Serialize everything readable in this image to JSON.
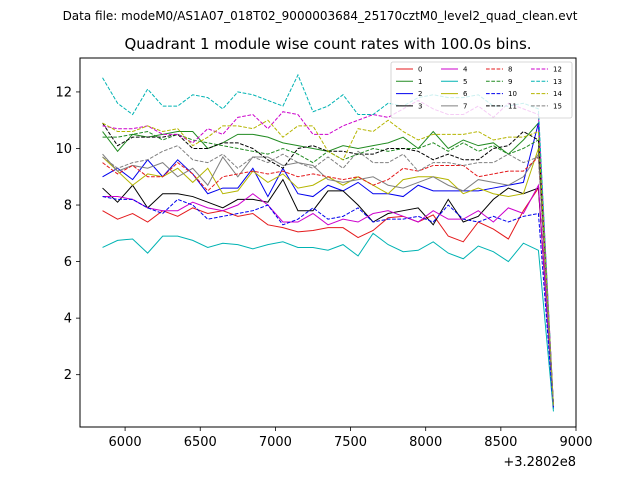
{
  "suptitle": "Data file: modeM0/AS1A07_018T02_9000003684_25170cztM0_level2_quad_clean.evt",
  "chart_data": {
    "type": "line",
    "title": "Quadrant 1 module wise count rates with 100.0s bins.",
    "x_offset_label": "+3.2802e8",
    "xlim": [
      5700,
      9000
    ],
    "ylim": [
      0.15,
      13.2
    ],
    "xticks": [
      6000,
      6500,
      7000,
      7500,
      8000,
      8500,
      9000
    ],
    "xtick_labels": [
      "6000",
      "6500",
      "7000",
      "7500",
      "8000",
      "8500",
      "9000"
    ],
    "yticks": [
      2,
      4,
      6,
      8,
      10,
      12
    ],
    "ytick_labels": [
      "2",
      "4",
      "6",
      "8",
      "10",
      "12"
    ],
    "legend_position": "upper-right",
    "legend_columns": 4,
    "x": [
      5850,
      5950,
      6050,
      6150,
      6250,
      6350,
      6450,
      6550,
      6650,
      6750,
      6850,
      6950,
      7050,
      7150,
      7250,
      7350,
      7450,
      7550,
      7650,
      7750,
      7850,
      7950,
      8050,
      8150,
      8250,
      8350,
      8450,
      8550,
      8650,
      8750,
      8850
    ],
    "series": [
      {
        "name": "0",
        "color": "#e41a1c",
        "dash": false,
        "values": [
          7.8,
          7.5,
          7.7,
          7.4,
          7.8,
          7.6,
          7.9,
          7.7,
          7.8,
          7.6,
          7.7,
          7.3,
          7.2,
          7.05,
          7.1,
          7.2,
          7.2,
          6.85,
          7.1,
          7.55,
          7.6,
          7.4,
          7.65,
          6.9,
          6.7,
          7.4,
          7.15,
          6.8,
          7.8,
          8.6,
          0.9
        ]
      },
      {
        "name": "1",
        "color": "#228B22",
        "dash": false,
        "values": [
          10.6,
          9.9,
          10.5,
          10.4,
          10.5,
          10.6,
          10.6,
          10.0,
          10.2,
          10.5,
          10.5,
          10.4,
          10.2,
          10.1,
          10.0,
          9.9,
          10.1,
          10.0,
          10.1,
          10.2,
          10.4,
          10.0,
          10.6,
          10.0,
          10.3,
          10.1,
          10.2,
          9.8,
          10.3,
          10.9,
          0.9
        ]
      },
      {
        "name": "2",
        "color": "#0000ee",
        "dash": false,
        "values": [
          9.0,
          9.3,
          8.9,
          9.6,
          9.0,
          9.6,
          9.1,
          8.4,
          8.6,
          8.6,
          9.3,
          8.3,
          9.3,
          8.4,
          8.3,
          8.7,
          8.5,
          8.8,
          8.4,
          8.4,
          8.3,
          8.7,
          8.5,
          8.5,
          8.5,
          8.5,
          8.6,
          8.7,
          8.8,
          10.9,
          0.8
        ]
      },
      {
        "name": "3",
        "color": "#000000",
        "dash": false,
        "values": [
          8.6,
          8.1,
          8.7,
          7.9,
          8.4,
          8.4,
          8.3,
          8.1,
          7.9,
          8.2,
          8.2,
          8.1,
          8.9,
          7.8,
          7.8,
          8.5,
          8.5,
          8.0,
          7.4,
          7.7,
          7.8,
          7.9,
          7.3,
          8.2,
          7.4,
          7.6,
          8.2,
          8.6,
          8.4,
          8.6,
          0.9
        ]
      },
      {
        "name": "4",
        "color": "#cc00cc",
        "dash": false,
        "values": [
          8.3,
          8.3,
          8.2,
          7.9,
          7.8,
          7.8,
          8.1,
          7.9,
          7.8,
          8.0,
          8.4,
          8.0,
          7.4,
          7.4,
          7.7,
          7.3,
          7.5,
          7.4,
          7.7,
          7.8,
          7.6,
          7.4,
          7.8,
          7.5,
          7.5,
          7.8,
          7.4,
          7.9,
          7.7,
          8.7,
          0.8
        ]
      },
      {
        "name": "5",
        "color": "#00b3b3",
        "dash": false,
        "values": [
          6.5,
          6.75,
          6.8,
          6.3,
          6.9,
          6.9,
          6.75,
          6.5,
          6.65,
          6.6,
          6.45,
          6.6,
          6.7,
          6.5,
          6.5,
          6.4,
          6.6,
          6.2,
          7.0,
          6.6,
          6.35,
          6.4,
          6.7,
          6.3,
          6.1,
          6.55,
          6.35,
          6.0,
          6.65,
          6.4,
          0.7
        ]
      },
      {
        "name": "6",
        "color": "#b5b500",
        "dash": false,
        "values": [
          9.7,
          9.2,
          8.7,
          9.1,
          9.0,
          9.3,
          8.8,
          9.3,
          8.4,
          8.5,
          9.2,
          8.8,
          9.1,
          8.6,
          8.7,
          9.0,
          8.7,
          9.0,
          8.7,
          8.4,
          8.9,
          9.0,
          9.0,
          8.9,
          8.4,
          8.6,
          8.4,
          8.3,
          8.4,
          10.0,
          0.9
        ]
      },
      {
        "name": "7",
        "color": "#808080",
        "dash": false,
        "values": [
          9.8,
          9.2,
          9.4,
          9.3,
          9.5,
          9.0,
          9.3,
          8.7,
          9.7,
          9.0,
          9.7,
          9.7,
          9.4,
          9.5,
          9.4,
          8.9,
          8.8,
          8.9,
          9.0,
          8.7,
          8.6,
          8.8,
          9.0,
          8.7,
          8.5,
          8.9,
          8.8,
          8.7,
          9.0,
          9.8,
          0.9
        ]
      },
      {
        "name": "8",
        "color": "#e41a1c",
        "dash": true,
        "values": [
          9.5,
          9.1,
          9.4,
          9.0,
          9.0,
          9.5,
          9.1,
          8.5,
          9.0,
          9.1,
          9.2,
          9.1,
          9.2,
          9.0,
          9.1,
          9.0,
          8.9,
          9.0,
          8.7,
          8.9,
          9.3,
          9.2,
          9.4,
          9.4,
          9.4,
          9.0,
          9.1,
          9.2,
          9.2,
          9.7,
          0.9
        ]
      },
      {
        "name": "9",
        "color": "#228B22",
        "dash": true,
        "values": [
          10.4,
          10.4,
          10.5,
          10.6,
          10.3,
          10.5,
          10.3,
          10.2,
          10.1,
          10.0,
          9.9,
          9.8,
          10.0,
          9.8,
          9.5,
          9.9,
          9.6,
          9.8,
          10.0,
          9.9,
          10.0,
          10.0,
          10.2,
          9.9,
          10.2,
          9.9,
          10.1,
          9.8,
          10.0,
          10.3,
          0.9
        ]
      },
      {
        "name": "10",
        "color": "#0000ee",
        "dash": true,
        "values": [
          8.3,
          8.2,
          8.2,
          7.9,
          7.7,
          8.2,
          8.0,
          7.5,
          7.6,
          7.7,
          7.8,
          8.0,
          7.3,
          7.5,
          7.9,
          7.5,
          7.6,
          7.9,
          7.4,
          7.5,
          7.5,
          7.6,
          7.4,
          8.0,
          7.5,
          7.4,
          7.6,
          7.4,
          7.6,
          7.7,
          0.8
        ]
      },
      {
        "name": "11",
        "color": "#000000",
        "dash": true,
        "values": [
          10.9,
          10.1,
          10.4,
          10.4,
          10.4,
          10.5,
          10.0,
          10.0,
          10.2,
          10.2,
          10.0,
          9.6,
          9.3,
          10.0,
          10.1,
          9.9,
          9.9,
          9.8,
          9.8,
          10.0,
          10.0,
          9.9,
          9.6,
          9.8,
          9.6,
          9.6,
          10.0,
          10.1,
          10.6,
          10.3,
          0.9
        ]
      },
      {
        "name": "12",
        "color": "#cc00cc",
        "dash": true,
        "values": [
          10.8,
          10.7,
          10.7,
          10.8,
          10.5,
          10.5,
          10.2,
          10.7,
          10.5,
          11.1,
          11.2,
          10.7,
          11.3,
          11.2,
          10.5,
          10.5,
          10.8,
          11.0,
          11.2,
          11.1,
          11.4,
          11.7,
          11.4,
          11.2,
          11.2,
          11.5,
          11.1,
          11.6,
          11.4,
          11.2,
          0.9
        ]
      },
      {
        "name": "13",
        "color": "#00b3b3",
        "dash": true,
        "values": [
          12.5,
          11.6,
          11.2,
          12.1,
          11.5,
          11.5,
          11.9,
          11.8,
          11.4,
          12.0,
          11.9,
          11.7,
          11.5,
          12.6,
          11.3,
          11.5,
          11.9,
          11.2,
          11.2,
          11.6,
          11.5,
          11.8,
          11.9,
          11.8,
          11.8,
          11.9,
          11.5,
          11.5,
          11.6,
          11.4,
          0.8
        ]
      },
      {
        "name": "14",
        "color": "#b5b500",
        "dash": true,
        "values": [
          10.9,
          10.6,
          10.6,
          10.8,
          10.6,
          10.7,
          10.1,
          10.4,
          10.8,
          10.8,
          10.7,
          11.0,
          10.4,
          10.8,
          10.8,
          9.9,
          9.6,
          10.7,
          10.6,
          11.0,
          10.6,
          10.3,
          10.5,
          10.5,
          10.5,
          10.6,
          10.3,
          10.4,
          10.4,
          10.6,
          0.9
        ]
      },
      {
        "name": "15",
        "color": "#808080",
        "dash": true,
        "values": [
          9.7,
          9.3,
          9.5,
          9.6,
          9.9,
          10.1,
          9.6,
          9.5,
          9.8,
          9.3,
          9.7,
          9.5,
          9.8,
          9.5,
          9.3,
          9.7,
          9.3,
          9.9,
          9.5,
          9.5,
          9.8,
          9.2,
          9.5,
          9.5,
          9.4,
          9.5,
          9.5,
          9.8,
          9.5,
          9.7,
          0.9
        ]
      }
    ]
  }
}
